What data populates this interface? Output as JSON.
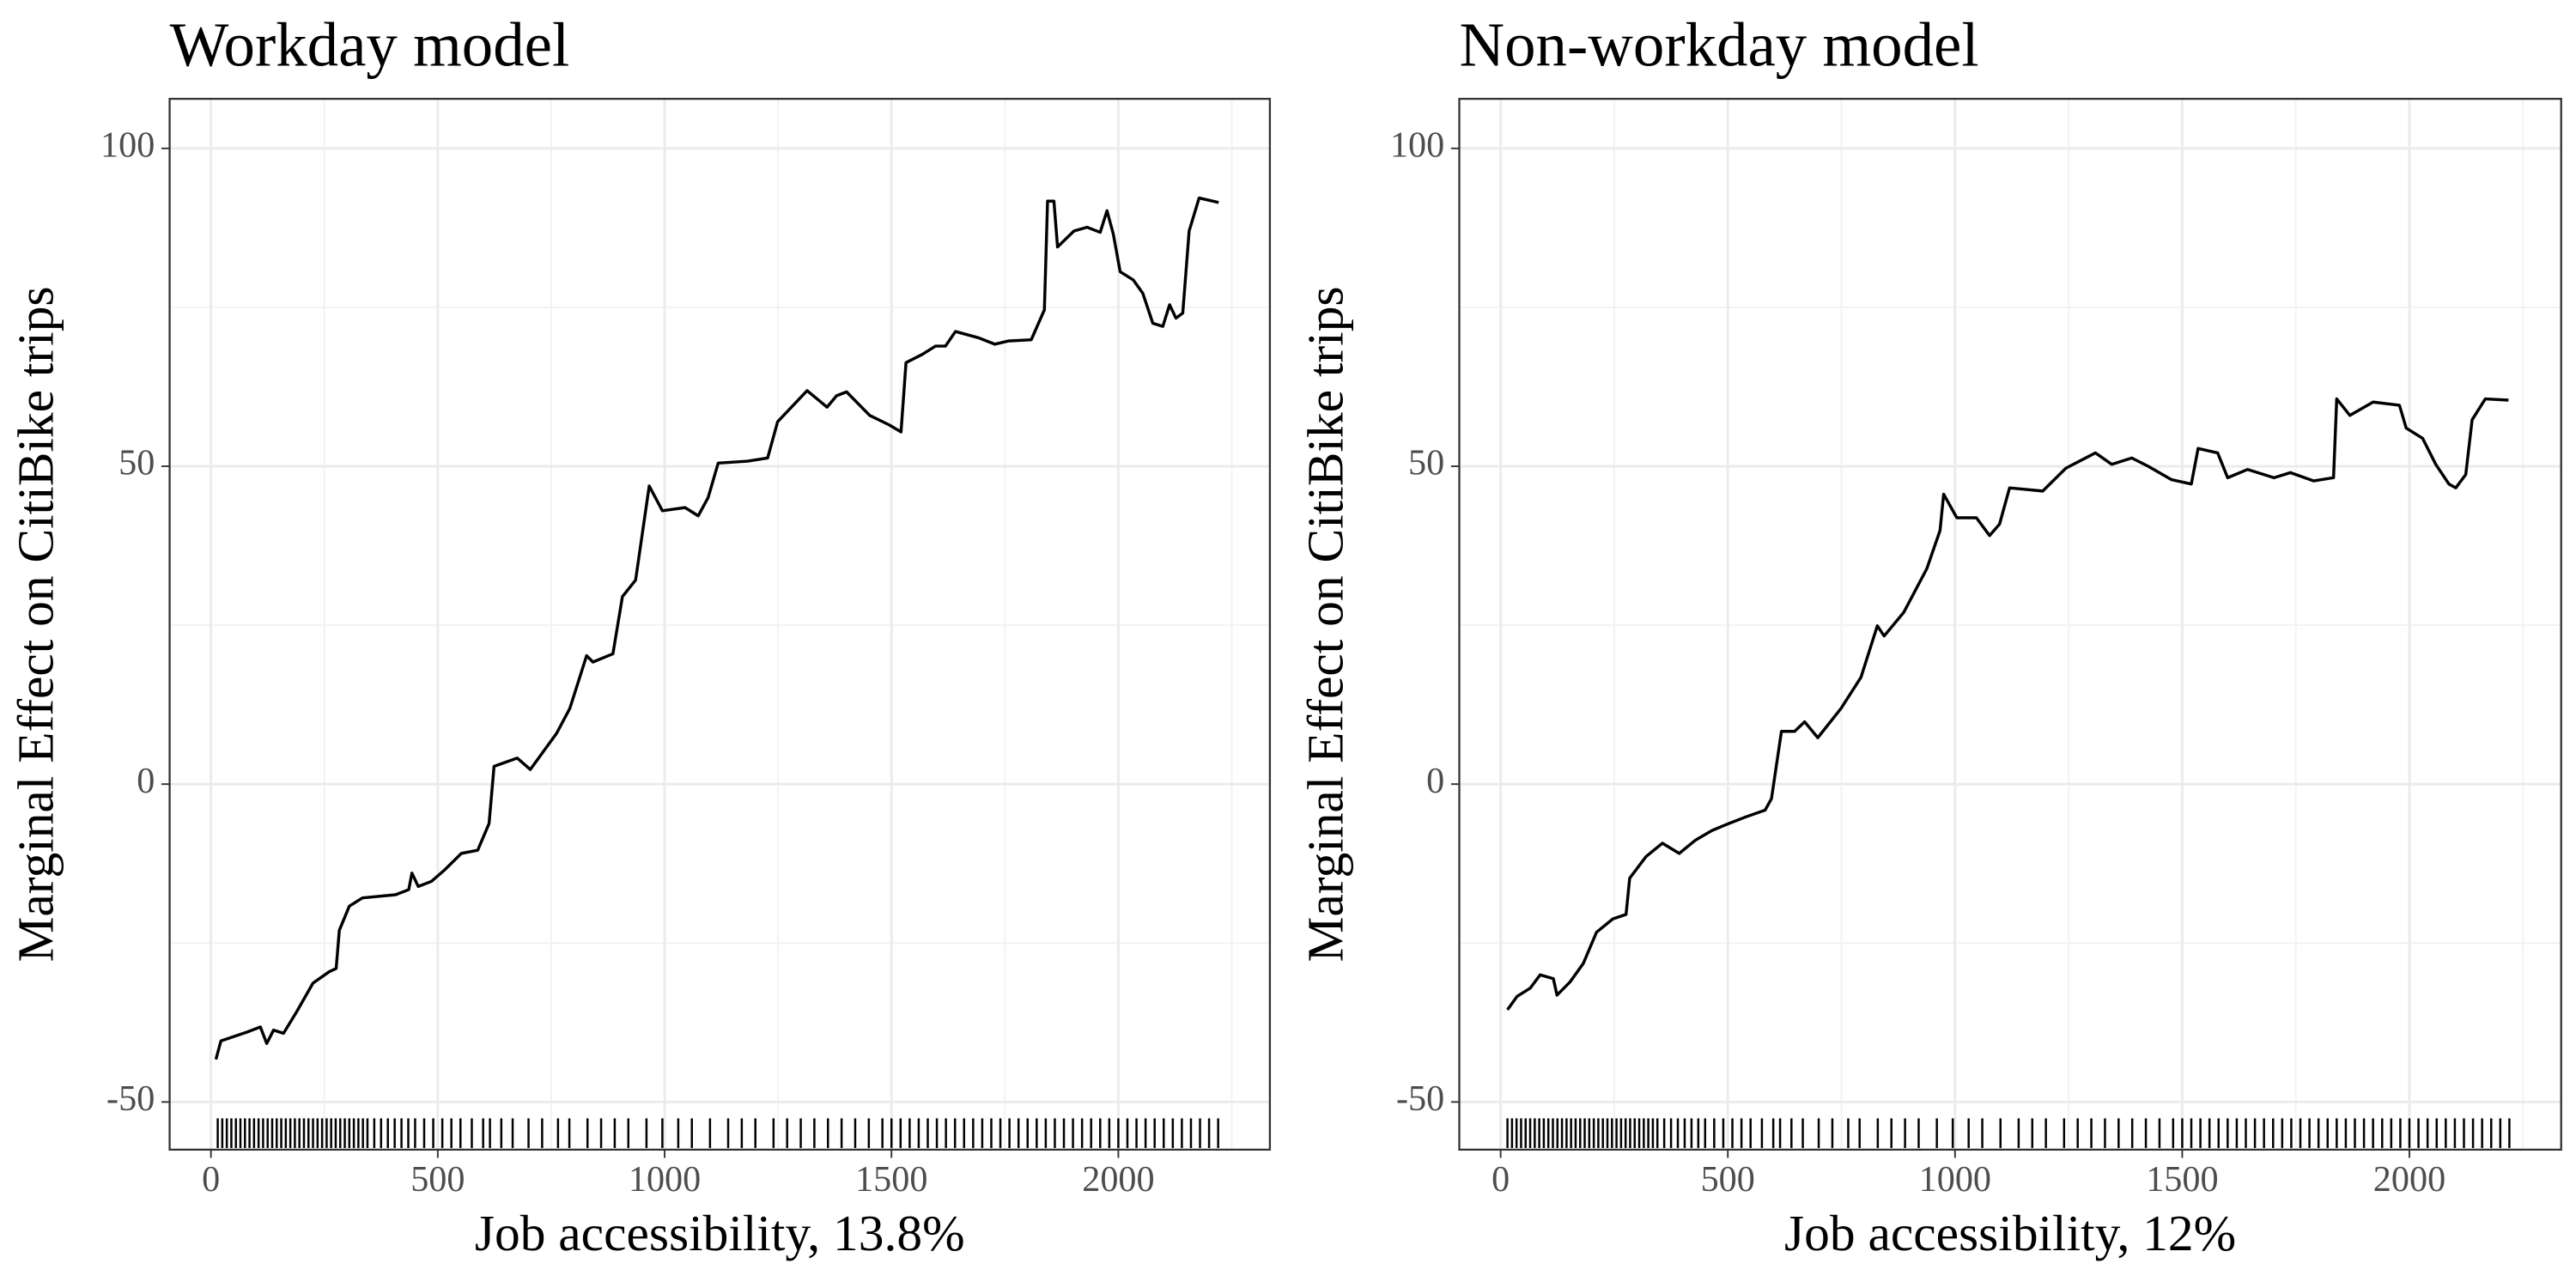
{
  "chart_data": [
    {
      "type": "line",
      "title": "Workday model",
      "x_label": "Job accessibility, 13.8%",
      "y_label": "Marginal Effect on CitiBike trips",
      "x": [
        11,
        22,
        80,
        109,
        123,
        138,
        160,
        189,
        225,
        261,
        276,
        283,
        305,
        334,
        407,
        436,
        443,
        457,
        486,
        515,
        552,
        588,
        613,
        624,
        675,
        704,
        762,
        791,
        828,
        842,
        886,
        907,
        936,
        966,
        995,
        1045,
        1074,
        1096,
        1118,
        1183,
        1227,
        1249,
        1314,
        1358,
        1379,
        1401,
        1452,
        1495,
        1521,
        1532,
        1568,
        1597,
        1619,
        1641,
        1692,
        1728,
        1757,
        1808,
        1837,
        1844,
        1858,
        1866,
        1902,
        1931,
        1960,
        1975,
        1989,
        2004,
        2033,
        2054,
        2076,
        2098,
        2113,
        2127,
        2142,
        2156,
        2178,
        2221
      ],
      "values": [
        -43.3,
        -40.4,
        -39,
        -38.2,
        -40.8,
        -38.7,
        -39.2,
        -35.8,
        -31.3,
        -29.5,
        -29,
        -23,
        -19.2,
        -17.9,
        -17.4,
        -16.6,
        -14,
        -16.1,
        -15.3,
        -13.5,
        -10.9,
        -10.4,
        -6.2,
        2.8,
        4.1,
        2.3,
        8,
        11.9,
        20.2,
        19.2,
        20.5,
        29.5,
        32.1,
        46.9,
        43,
        43.5,
        42.2,
        45.1,
        50.5,
        50.8,
        51.3,
        57,
        61.9,
        59.3,
        61.1,
        61.7,
        58,
        56.5,
        55.4,
        66.3,
        67.6,
        68.9,
        68.9,
        71.2,
        70.2,
        69.2,
        69.7,
        69.9,
        74.6,
        91.7,
        91.7,
        84.5,
        87,
        87.6,
        86.8,
        90.2,
        86.5,
        80.6,
        79.3,
        77.2,
        72.5,
        72,
        75.4,
        73.3,
        74.1,
        87,
        92.2,
        91.5
      ],
      "rug": [
        15,
        25,
        35,
        45,
        55,
        65,
        75,
        85,
        95,
        105,
        115,
        125,
        135,
        145,
        155,
        165,
        175,
        185,
        195,
        205,
        215,
        225,
        235,
        245,
        255,
        265,
        275,
        285,
        295,
        305,
        315,
        325,
        335,
        345,
        360,
        375,
        390,
        405,
        420,
        435,
        450,
        470,
        490,
        510,
        530,
        550,
        575,
        600,
        615,
        640,
        665,
        700,
        730,
        765,
        790,
        830,
        860,
        890,
        920,
        960,
        995,
        1030,
        1060,
        1100,
        1140,
        1170,
        1200,
        1240,
        1270,
        1300,
        1330,
        1360,
        1390,
        1420,
        1450,
        1480,
        1500,
        1520,
        1540,
        1560,
        1580,
        1600,
        1620,
        1640,
        1660,
        1680,
        1700,
        1720,
        1740,
        1760,
        1780,
        1800,
        1820,
        1840,
        1860,
        1880,
        1900,
        1920,
        1940,
        1960,
        1980,
        2000,
        2020,
        2040,
        2060,
        2080,
        2100,
        2120,
        2140,
        2160,
        2180,
        2200,
        2220
      ],
      "color": "#000000",
      "xlim": [
        -91,
        2334
      ],
      "ylim": [
        -57.5,
        107.8
      ],
      "xticks": [
        0,
        500,
        1000,
        1500,
        2000
      ],
      "yticks": [
        -50,
        0,
        50,
        100
      ],
      "x_minor_ticks": [
        250,
        750,
        1250,
        1750,
        2250
      ],
      "y_minor_ticks": [
        -25,
        25,
        75
      ],
      "grid": true
    },
    {
      "type": "line",
      "title": "Non-workday model",
      "x_label": "Job accessibility, 12%",
      "y_label": "Marginal Effect on CitiBike trips",
      "x": [
        15,
        36,
        65,
        87,
        116,
        124,
        153,
        182,
        211,
        247,
        276,
        284,
        320,
        356,
        393,
        429,
        465,
        502,
        538,
        582,
        596,
        618,
        647,
        669,
        698,
        749,
        793,
        829,
        844,
        887,
        938,
        967,
        975,
        1004,
        1047,
        1076,
        1098,
        1120,
        1193,
        1244,
        1309,
        1345,
        1389,
        1425,
        1476,
        1520,
        1535,
        1578,
        1600,
        1644,
        1702,
        1738,
        1789,
        1833,
        1840,
        1869,
        1920,
        1978,
        1993,
        2029,
        2058,
        2087,
        2102,
        2124,
        2138,
        2167,
        2218
      ],
      "values": [
        -35.5,
        -33.4,
        -32.1,
        -30,
        -30.6,
        -33.2,
        -31.1,
        -28.2,
        -23.3,
        -21.2,
        -20.5,
        -14.8,
        -11.4,
        -9.3,
        -10.9,
        -8.8,
        -7.3,
        -6.2,
        -5.2,
        -4.1,
        -2.3,
        8.3,
        8.3,
        9.8,
        7.3,
        11.9,
        16.8,
        24.9,
        23.3,
        27,
        33.9,
        39.9,
        45.6,
        41.9,
        41.9,
        39.1,
        40.9,
        46.6,
        46.1,
        49.7,
        52.1,
        50.3,
        51.3,
        50,
        47.9,
        47.2,
        52.8,
        52.1,
        48.2,
        49.5,
        48.2,
        49,
        47.7,
        48.2,
        60.6,
        58,
        60.1,
        59.6,
        56,
        54.4,
        50.3,
        47.2,
        46.6,
        48.7,
        57.3,
        60.6,
        60.4
      ],
      "rug": [
        15,
        25,
        35,
        45,
        55,
        65,
        75,
        85,
        95,
        105,
        115,
        125,
        135,
        145,
        155,
        165,
        175,
        185,
        195,
        205,
        215,
        225,
        235,
        245,
        255,
        265,
        275,
        285,
        295,
        305,
        315,
        325,
        335,
        345,
        360,
        375,
        390,
        405,
        420,
        435,
        450,
        470,
        490,
        510,
        530,
        550,
        575,
        600,
        615,
        640,
        665,
        700,
        730,
        765,
        790,
        830,
        860,
        890,
        920,
        960,
        995,
        1030,
        1060,
        1100,
        1140,
        1170,
        1200,
        1240,
        1270,
        1300,
        1330,
        1360,
        1390,
        1420,
        1450,
        1480,
        1500,
        1520,
        1540,
        1560,
        1580,
        1600,
        1620,
        1640,
        1660,
        1680,
        1700,
        1720,
        1740,
        1760,
        1780,
        1800,
        1820,
        1840,
        1860,
        1880,
        1900,
        1920,
        1940,
        1960,
        1980,
        2000,
        2020,
        2040,
        2060,
        2080,
        2100,
        2120,
        2140,
        2160,
        2180,
        2200,
        2220
      ],
      "color": "#000000",
      "xlim": [
        -91,
        2334
      ],
      "ylim": [
        -57.5,
        107.8
      ],
      "xticks": [
        0,
        500,
        1000,
        1500,
        2000
      ],
      "yticks": [
        -50,
        0,
        50,
        100
      ],
      "x_minor_ticks": [
        250,
        750,
        1250,
        1750,
        2250
      ],
      "y_minor_ticks": [
        -25,
        25,
        75
      ],
      "grid": true
    }
  ]
}
